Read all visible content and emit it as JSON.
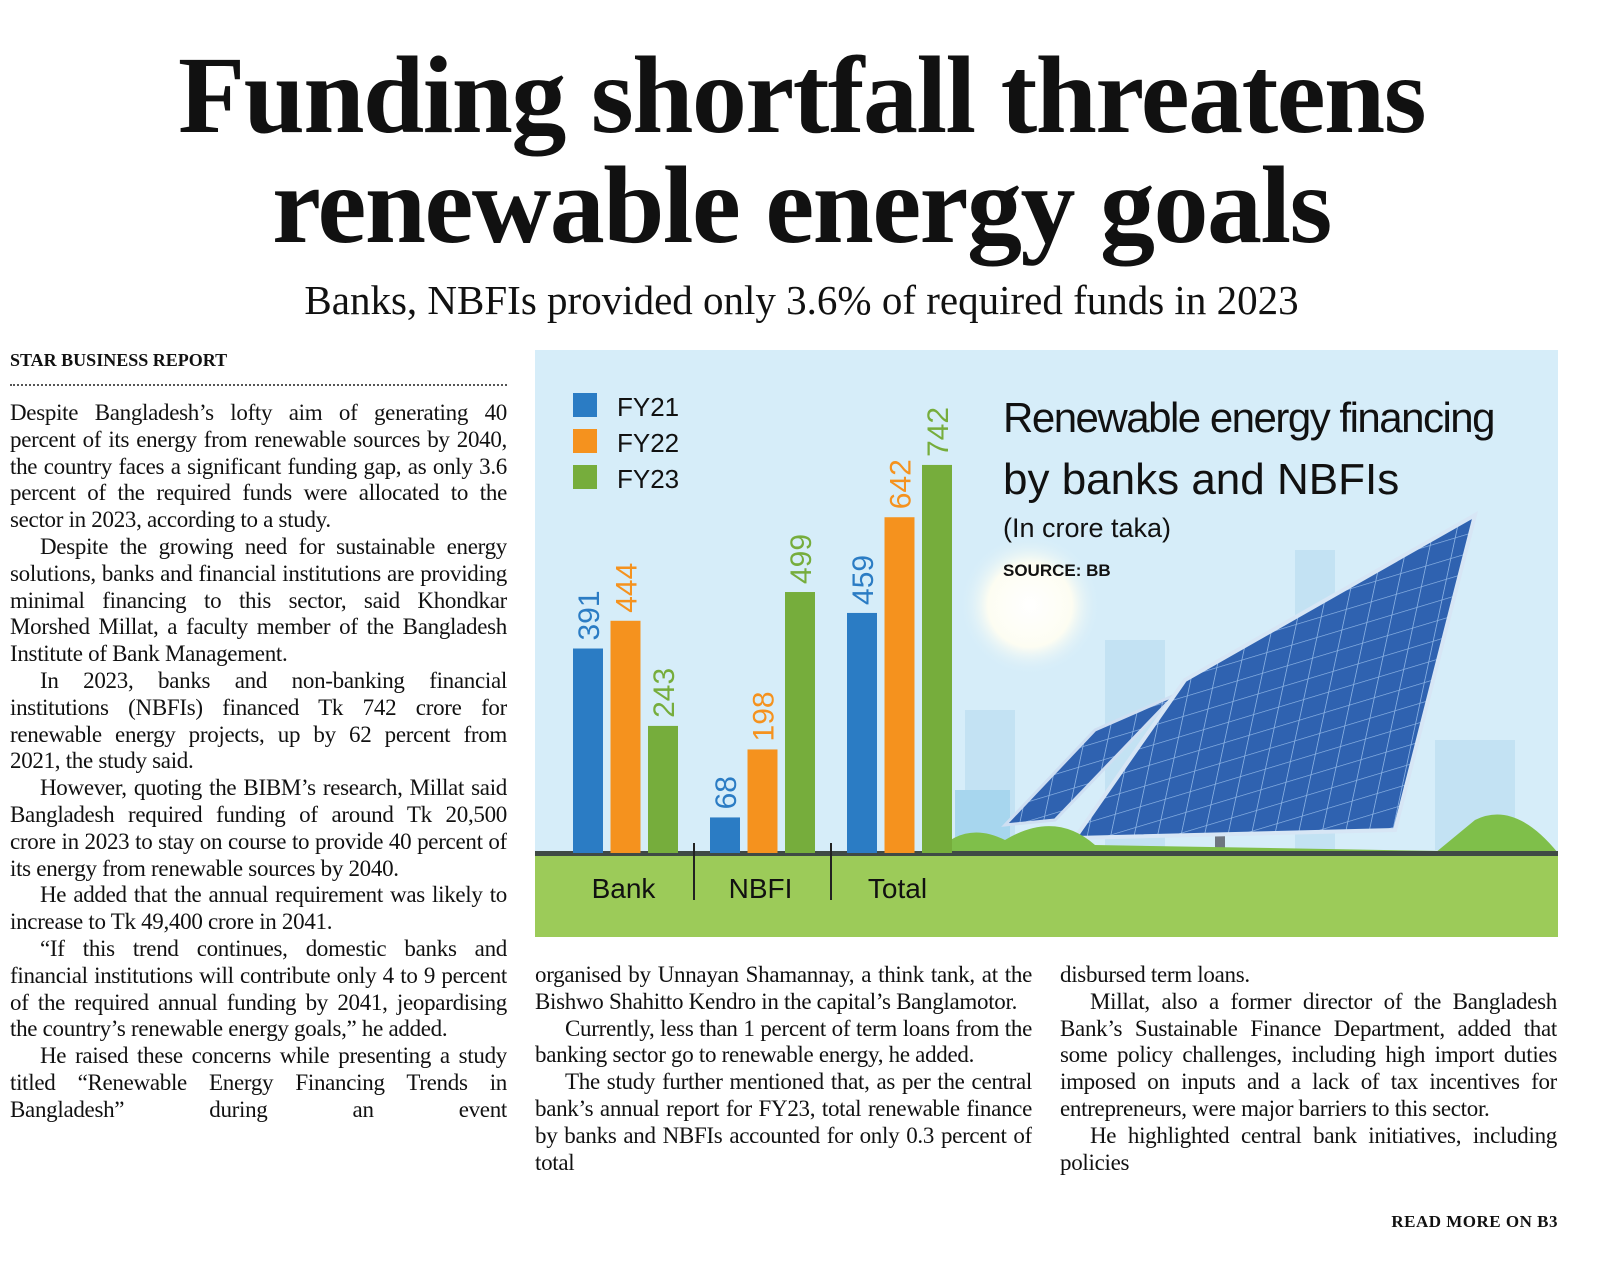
{
  "headline": [
    "Funding shortfall threatens",
    "renewable energy goals"
  ],
  "subheadline": "Banks, NBFIs provided only 3.6% of required funds in 2023",
  "byline": "STAR BUSINESS REPORT",
  "columns": [
    [
      "Despite Bangladesh’s lofty aim of generating 40 percent of its energy from renewable sources by 2040, the country faces a significant funding gap, as only 3.6 percent of the required funds were allocated to the sector in 2023, according to a study.",
      "Despite the growing need for sustainable energy solutions, banks and financial institutions are providing minimal financing to this sector, said Khondkar Morshed Millat, a faculty member of the Bangladesh Institute of Bank Management.",
      "In 2023, banks and non-banking financial institutions (NBFIs) financed Tk 742 crore for renewable energy projects, up by 62 percent from 2021, the study said.",
      "However, quoting the BIBM’s research, Millat said Bangladesh required funding of around Tk 20,500 crore in 2023 to stay on course to provide 40 percent of its energy from renewable sources by 2040.",
      "He added that the annual requirement was likely to increase to Tk 49,400 crore in 2041.",
      "“If this trend continues, domestic banks and financial institutions will contribute only 4 to 9 percent of the required annual funding by 2041, jeopardising the country’s renewable energy goals,” he added.",
      "He raised these concerns while presenting a study titled “Renewable Energy Financing Trends in Bangladesh” during an event"
    ],
    [
      "organised by Unnayan Shamannay, a think tank, at the Bishwo Shahitto Kendro in the capital’s Banglamotor.",
      "Currently, less than 1 percent of term loans from the banking sector go to renewable energy, he added.",
      "The study further mentioned that, as per the central bank’s annual report for FY23, total renewable finance by banks and NBFIs accounted for only 0.3 percent of total"
    ],
    [
      "disbursed term loans.",
      "Millat, also a former director of the Bangladesh Bank’s Sustainable Finance Department, added that some policy challenges, including high import duties imposed on inputs and a lack of tax incentives for entrepreneurs, were major barriers to this sector.",
      "He highlighted central bank initiatives, including policies"
    ]
  ],
  "read_more": "READ MORE ON B3",
  "chart_data": {
    "type": "bar",
    "title": [
      "Renewable energy financing",
      "by banks and NBFIs"
    ],
    "subtitle": "(In crore taka)",
    "source": "SOURCE: BB",
    "categories": [
      "Bank",
      "NBFI",
      "Total"
    ],
    "series": [
      {
        "name": "FY21",
        "color": "#2b7cc4",
        "values": [
          391,
          68,
          459
        ]
      },
      {
        "name": "FY22",
        "color": "#f5921e",
        "values": [
          444,
          198,
          642
        ]
      },
      {
        "name": "FY23",
        "color": "#76ad3c",
        "values": [
          243,
          499,
          742
        ]
      }
    ]
  }
}
